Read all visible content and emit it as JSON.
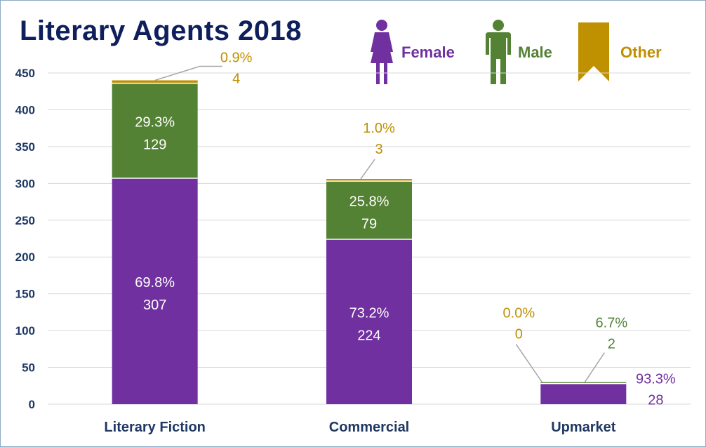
{
  "chart_data": {
    "type": "bar",
    "stacked": true,
    "title": "Literary Agents 2018",
    "categories": [
      "Literary Fiction",
      "Commercial",
      "Upmarket"
    ],
    "series": [
      {
        "name": "Female",
        "color": "#7030a0",
        "values": [
          307,
          224,
          28
        ],
        "percent_labels": [
          "69.8%",
          "73.2%",
          "93.3%"
        ]
      },
      {
        "name": "Male",
        "color": "#548235",
        "values": [
          129,
          79,
          2
        ],
        "percent_labels": [
          "29.3%",
          "25.8%",
          "6.7%"
        ]
      },
      {
        "name": "Other",
        "color": "#bf9000",
        "values": [
          4,
          3,
          0
        ],
        "percent_labels": [
          "0.9%",
          "1.0%",
          "0.0%"
        ]
      }
    ],
    "ylim": [
      0,
      450
    ],
    "yticks": [
      0,
      50,
      100,
      150,
      200,
      250,
      300,
      350,
      400,
      450
    ],
    "grid": true,
    "legend_position": "top-right",
    "xlabel": "",
    "ylabel": ""
  },
  "legend": {
    "female_icon": "female-person-icon",
    "male_icon": "male-person-icon",
    "other_icon": "ribbon-bookmark-icon"
  }
}
